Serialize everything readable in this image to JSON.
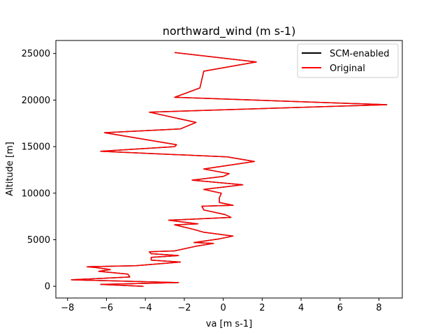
{
  "chart_data": {
    "type": "line",
    "title": "northward_wind (m s-1)",
    "xlabel": "va [m s-1]",
    "ylabel": "Altitude [m]",
    "xlim": [
      -8.6,
      9.2
    ],
    "ylim": [
      -1260,
      26400
    ],
    "xticks": [
      -8,
      -6,
      -4,
      -2,
      0,
      2,
      4,
      6,
      8
    ],
    "yticks": [
      0,
      5000,
      10000,
      15000,
      20000,
      25000
    ],
    "grid": false,
    "legend_position": "top-right",
    "series": [
      {
        "name": "SCM-enabled",
        "color": "#000000",
        "x": [
          -4.1,
          -6.3,
          -2.3,
          -7.8,
          -4.8,
          -4.9,
          -6.4,
          -5.8,
          -6.5,
          -7.0,
          -4.5,
          -2.2,
          -3.7,
          -3.7,
          -2.3,
          -3.7,
          -3.8,
          -2.5,
          -1.4,
          -0.5,
          -1.5,
          -0.2,
          0.5,
          -1.0,
          -1.5,
          -2.5,
          -1.3,
          -2.8,
          0.4,
          0.1,
          -1.0,
          -1.1,
          0.5,
          -0.2,
          -0.2,
          -0.1,
          -1.0,
          1.0,
          -1.6,
          0.0,
          0.3,
          -1.0,
          1.6,
          0.2,
          -6.3,
          -2.5,
          -2.4,
          -6.1,
          -2.2,
          -1.4,
          -3.8,
          8.4,
          -2.5,
          -1.2,
          -1.0,
          1.7,
          -2.5
        ],
        "y": [
          0,
          200,
          400,
          700,
          1000,
          1300,
          1600,
          1800,
          2000,
          2100,
          2200,
          2600,
          2800,
          3100,
          3300,
          3500,
          3700,
          3800,
          4300,
          4600,
          4700,
          5100,
          5400,
          5800,
          6100,
          6600,
          6700,
          7100,
          7400,
          7700,
          8200,
          8600,
          8700,
          9000,
          9500,
          10000,
          10400,
          10900,
          11400,
          11800,
          12100,
          12600,
          13400,
          13900,
          14500,
          15000,
          15200,
          16500,
          16900,
          17600,
          18700,
          19500,
          20300,
          21300,
          23100,
          24100,
          25100
        ]
      },
      {
        "name": "Original",
        "color": "#ff0000",
        "x": [
          -4.1,
          -6.3,
          -2.3,
          -7.8,
          -4.8,
          -4.9,
          -6.4,
          -5.8,
          -6.5,
          -7.0,
          -4.5,
          -2.2,
          -3.7,
          -3.7,
          -2.3,
          -3.7,
          -3.8,
          -2.5,
          -1.4,
          -0.5,
          -1.5,
          -0.2,
          0.5,
          -1.0,
          -1.5,
          -2.5,
          -1.3,
          -2.8,
          0.4,
          0.1,
          -1.0,
          -1.1,
          0.5,
          -0.2,
          -0.2,
          -0.1,
          -1.0,
          1.0,
          -1.6,
          0.0,
          0.3,
          -1.0,
          1.6,
          0.2,
          -6.3,
          -2.5,
          -2.4,
          -6.1,
          -2.2,
          -1.4,
          -3.8,
          8.4,
          -2.5,
          -1.2,
          -1.0,
          1.7,
          -2.5
        ],
        "y": [
          0,
          200,
          400,
          700,
          1000,
          1300,
          1600,
          1800,
          2000,
          2100,
          2200,
          2600,
          2800,
          3100,
          3300,
          3500,
          3700,
          3800,
          4300,
          4600,
          4700,
          5100,
          5400,
          5800,
          6100,
          6600,
          6700,
          7100,
          7400,
          7700,
          8200,
          8600,
          8700,
          9000,
          9500,
          10000,
          10400,
          10900,
          11400,
          11800,
          12100,
          12600,
          13400,
          13900,
          14500,
          15000,
          15200,
          16500,
          16900,
          17600,
          18700,
          19500,
          20300,
          21300,
          23100,
          24100,
          25100
        ]
      }
    ]
  }
}
